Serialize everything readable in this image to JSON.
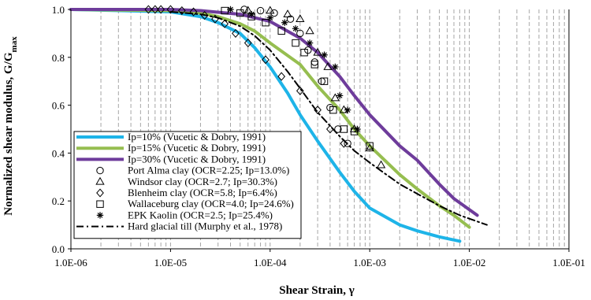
{
  "chart_data": {
    "type": "scatter",
    "xlabel": "Shear Strain, γ",
    "ylabel_main": "Normalized shear modulus, G/G",
    "ylabel_sub": "max",
    "x_scale": "log",
    "xlim": [
      1e-06,
      0.1
    ],
    "ylim": [
      0,
      1.0
    ],
    "x_ticks": [
      "1.0E-06",
      "1.0E-05",
      "1.0E-04",
      "1.0E-03",
      "1.0E-02",
      "1.0E-01"
    ],
    "y_ticks": [
      "0.0",
      "0.2",
      "0.4",
      "0.6",
      "0.8",
      "1.0"
    ],
    "grid": "vertical dashed minor",
    "legend_position": "bottom-left",
    "series": [
      {
        "name": "Ip=10% (Vucetic & Dobry, 1991)",
        "kind": "line",
        "color": "#1eb4e8",
        "width": 4,
        "points": [
          [
            1e-06,
            1.0
          ],
          [
            1e-05,
            0.99
          ],
          [
            2e-05,
            0.97
          ],
          [
            3e-05,
            0.945
          ],
          [
            5e-05,
            0.9
          ],
          [
            7e-05,
            0.84
          ],
          [
            0.0001,
            0.76
          ],
          [
            0.00015,
            0.65
          ],
          [
            0.0002,
            0.56
          ],
          [
            0.0003,
            0.45
          ],
          [
            0.0005,
            0.32
          ],
          [
            0.0007,
            0.24
          ],
          [
            0.001,
            0.17
          ],
          [
            0.002,
            0.1
          ],
          [
            0.003,
            0.075
          ],
          [
            0.005,
            0.05
          ],
          [
            0.008,
            0.032
          ]
        ]
      },
      {
        "name": "Ip=15% (Vucetic & Dobry, 1991)",
        "kind": "line",
        "color": "#96be50",
        "width": 4,
        "points": [
          [
            1e-06,
            1.0
          ],
          [
            1e-05,
            0.995
          ],
          [
            2e-05,
            0.985
          ],
          [
            3e-05,
            0.97
          ],
          [
            5e-05,
            0.94
          ],
          [
            7e-05,
            0.91
          ],
          [
            0.0001,
            0.86
          ],
          [
            0.0002,
            0.77
          ],
          [
            0.0003,
            0.68
          ],
          [
            0.0005,
            0.58
          ],
          [
            0.0007,
            0.5
          ],
          [
            0.001,
            0.43
          ],
          [
            0.002,
            0.31
          ],
          [
            0.003,
            0.25
          ],
          [
            0.005,
            0.18
          ],
          [
            0.007,
            0.14
          ],
          [
            0.01,
            0.09
          ]
        ]
      },
      {
        "name": "Ip=30% (Vucetic & Dobry, 1991)",
        "kind": "line",
        "color": "#6e3c9b",
        "width": 4,
        "points": [
          [
            1e-06,
            1.0
          ],
          [
            1e-05,
            1.0
          ],
          [
            2e-05,
            0.995
          ],
          [
            5e-05,
            0.98
          ],
          [
            0.0001,
            0.95
          ],
          [
            0.0002,
            0.88
          ],
          [
            0.0003,
            0.82
          ],
          [
            0.0005,
            0.72
          ],
          [
            0.0007,
            0.64
          ],
          [
            0.001,
            0.56
          ],
          [
            0.002,
            0.43
          ],
          [
            0.003,
            0.37
          ],
          [
            0.005,
            0.27
          ],
          [
            0.007,
            0.21
          ],
          [
            0.012,
            0.14
          ]
        ]
      },
      {
        "name": "Port Alma clay (OCR=2.25; Ip=13.0%)",
        "kind": "marker",
        "marker": "circle",
        "points": [
          [
            5.5e-05,
            1.0
          ],
          [
            8e-05,
            0.995
          ],
          [
            0.00011,
            0.985
          ],
          [
            0.00016,
            0.96
          ],
          [
            0.0002,
            0.9
          ],
          [
            0.00024,
            0.83
          ],
          [
            0.00028,
            0.78
          ],
          [
            0.00033,
            0.7
          ],
          [
            0.0004,
            0.59
          ],
          [
            0.00048,
            0.5
          ],
          [
            0.0006,
            0.44
          ]
        ]
      },
      {
        "name": "Windsor clay (OCR=2.7; Ip=30.3%)",
        "kind": "marker",
        "marker": "triangle",
        "points": [
          [
            6e-05,
            0.995
          ],
          [
            0.0001,
            0.995
          ],
          [
            0.00015,
            0.98
          ],
          [
            0.0002,
            0.96
          ],
          [
            0.00025,
            0.91
          ],
          [
            0.0003,
            0.82
          ],
          [
            0.00038,
            0.76
          ],
          [
            0.00045,
            0.63
          ],
          [
            0.00055,
            0.58
          ],
          [
            0.0007,
            0.5
          ],
          [
            0.001,
            0.42
          ],
          [
            0.0013,
            0.35
          ]
        ]
      },
      {
        "name": "Blenheim clay (OCR=5.8; Ip=6.4%)",
        "kind": "marker",
        "marker": "diamond",
        "points": [
          [
            6e-06,
            1.0
          ],
          [
            7e-06,
            1.0
          ],
          [
            8e-06,
            1.0
          ],
          [
            1e-05,
            1.0
          ],
          [
            1.3e-05,
            0.995
          ],
          [
            1.7e-05,
            0.99
          ],
          [
            2.2e-05,
            0.975
          ],
          [
            2.8e-05,
            0.96
          ],
          [
            3.5e-05,
            0.94
          ],
          [
            4.5e-05,
            0.9
          ],
          [
            6e-05,
            0.86
          ],
          [
            9e-05,
            0.79
          ],
          [
            0.00013,
            0.72
          ],
          [
            0.0002,
            0.66
          ],
          [
            0.0003,
            0.58
          ],
          [
            0.0004,
            0.5
          ],
          [
            0.00055,
            0.44
          ]
        ]
      },
      {
        "name": "Wallaceburg clay (OCR=4.0; Ip=24.6%)",
        "kind": "marker",
        "marker": "square",
        "points": [
          [
            3.5e-05,
            0.995
          ],
          [
            5e-05,
            0.985
          ],
          [
            6.5e-05,
            0.97
          ],
          [
            9e-05,
            0.945
          ],
          [
            0.00013,
            0.91
          ],
          [
            0.00018,
            0.86
          ],
          [
            0.00022,
            0.82
          ],
          [
            0.00028,
            0.77
          ],
          [
            0.00035,
            0.7
          ],
          [
            0.00043,
            0.58
          ],
          [
            0.00055,
            0.5
          ],
          [
            0.0007,
            0.49
          ],
          [
            0.001,
            0.43
          ]
        ]
      },
      {
        "name": "EPK Kaolin (OCR=2.5; Ip=25.4%)",
        "kind": "marker",
        "marker": "asterisk",
        "points": [
          [
            4e-05,
            1.0
          ],
          [
            6.5e-05,
            0.98
          ],
          [
            0.0001,
            0.965
          ],
          [
            0.00014,
            0.945
          ],
          [
            0.00018,
            0.92
          ],
          [
            0.00025,
            0.86
          ],
          [
            0.00035,
            0.81
          ],
          [
            0.00045,
            0.76
          ],
          [
            0.0005,
            0.64
          ],
          [
            0.0006,
            0.58
          ],
          [
            0.00075,
            0.5
          ]
        ]
      },
      {
        "name": "Hard glacial till (Murphy et al., 1978)",
        "kind": "line",
        "color": "#000000",
        "width": 2,
        "dash": "9 4 2 4",
        "points": [
          [
            1e-05,
            0.99
          ],
          [
            2e-05,
            0.98
          ],
          [
            3e-05,
            0.965
          ],
          [
            5e-05,
            0.93
          ],
          [
            7e-05,
            0.89
          ],
          [
            0.0001,
            0.83
          ],
          [
            0.00015,
            0.74
          ],
          [
            0.0002,
            0.67
          ],
          [
            0.0003,
            0.57
          ],
          [
            0.0005,
            0.47
          ],
          [
            0.0007,
            0.41
          ],
          [
            0.001,
            0.36
          ],
          [
            0.002,
            0.27
          ],
          [
            0.003,
            0.23
          ],
          [
            0.005,
            0.18
          ],
          [
            0.008,
            0.14
          ],
          [
            0.015,
            0.1
          ]
        ]
      }
    ]
  }
}
